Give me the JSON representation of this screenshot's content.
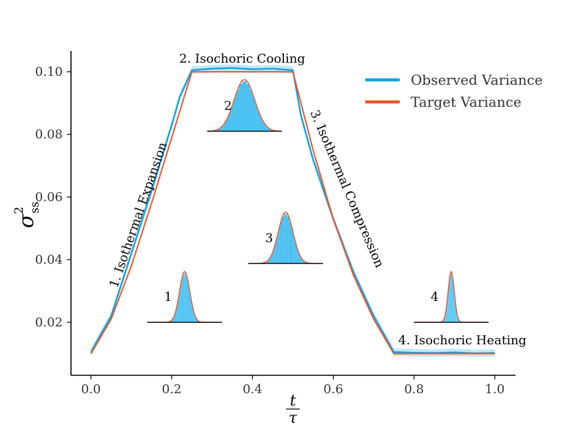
{
  "chart_data": {
    "type": "line",
    "title": "",
    "xlabel": {
      "numerator": "t",
      "denominator": "τ"
    },
    "ylabel": {
      "symbol": "σ",
      "superscript": "2",
      "subscript": "ss"
    },
    "xlim": [
      -0.05,
      1.05
    ],
    "ylim": [
      0.003,
      0.107
    ],
    "x_ticks": [
      0.0,
      0.2,
      0.4,
      0.6,
      0.8,
      1.0
    ],
    "x_tick_labels": [
      "0.0",
      "0.2",
      "0.4",
      "0.6",
      "0.8",
      "1.0"
    ],
    "y_ticks": [
      0.02,
      0.04,
      0.06,
      0.08,
      0.1
    ],
    "y_tick_labels": [
      "0.02",
      "0.04",
      "0.06",
      "0.08",
      "0.10"
    ],
    "grid": false,
    "legend_position": "top-right",
    "series": [
      {
        "name": "Observed Variance",
        "color": "#10a5e0",
        "x": [
          0.0,
          0.05,
          0.1,
          0.15,
          0.2,
          0.22,
          0.25,
          0.3,
          0.35,
          0.4,
          0.45,
          0.5,
          0.52,
          0.55,
          0.6,
          0.65,
          0.7,
          0.75,
          0.8,
          0.85,
          0.9,
          0.95,
          1.0
        ],
        "values": [
          0.0105,
          0.022,
          0.042,
          0.062,
          0.083,
          0.092,
          0.1005,
          0.101,
          0.1012,
          0.1008,
          0.101,
          0.1005,
          0.086,
          0.072,
          0.053,
          0.036,
          0.022,
          0.0105,
          0.0103,
          0.0102,
          0.0104,
          0.0101,
          0.0102
        ]
      },
      {
        "name": "Target Variance",
        "color": "#f0542a",
        "x": [
          0.0,
          0.05,
          0.1,
          0.15,
          0.2,
          0.25,
          0.5,
          0.55,
          0.6,
          0.65,
          0.7,
          0.75,
          1.0
        ],
        "values": [
          0.01,
          0.021,
          0.038,
          0.058,
          0.079,
          0.1,
          0.1,
          0.075,
          0.053,
          0.035,
          0.021,
          0.01,
          0.01
        ]
      }
    ],
    "annotations": [
      {
        "id": "iso-expansion",
        "text": "1. Isothermal Expansion"
      },
      {
        "id": "iso-cooling",
        "text": "2. Isochoric Cooling"
      },
      {
        "id": "iso-compression",
        "text": "3. Isothermal Compression"
      },
      {
        "id": "iso-heating",
        "text": "4. Isochoric Heating"
      }
    ],
    "distribution_insets": [
      {
        "label": "1",
        "center_x": 0.232,
        "baseline_y": 0.02,
        "width": 0.185,
        "peak_y": 0.0362,
        "relative_sigma": 0.5
      },
      {
        "label": "2",
        "center_x": 0.38,
        "baseline_y": 0.081,
        "width": 0.185,
        "peak_y": 0.0975,
        "relative_sigma": 1.0
      },
      {
        "label": "3",
        "center_x": 0.482,
        "baseline_y": 0.0388,
        "width": 0.185,
        "peak_y": 0.0552,
        "relative_sigma": 0.72
      },
      {
        "label": "4",
        "center_x": 0.892,
        "baseline_y": 0.02,
        "width": 0.185,
        "peak_y": 0.0362,
        "relative_sigma": 0.3
      }
    ]
  },
  "colors": {
    "observed": "#10a5e0",
    "target": "#f0542a",
    "band": "#aee2f7",
    "hist_fill": "#3fbcef",
    "axis": "#000000"
  }
}
